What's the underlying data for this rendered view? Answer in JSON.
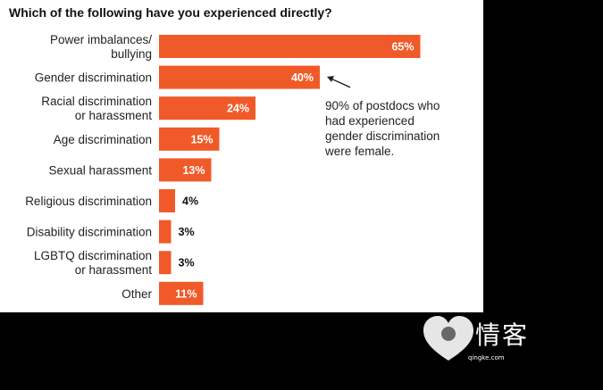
{
  "chart_data": {
    "type": "bar",
    "orientation": "horizontal",
    "title": "Which of the following have you experienced directly?",
    "categories": [
      [
        "Power imbalances/",
        "bullying"
      ],
      [
        "Gender discrimination"
      ],
      [
        "Racial discrimination",
        "or harassment"
      ],
      [
        "Age discrimination"
      ],
      [
        "Sexual harassment"
      ],
      [
        "Religious discrimination"
      ],
      [
        "Disability discrimination"
      ],
      [
        "LGBTQ discrimination",
        "or harassment"
      ],
      [
        "Other"
      ]
    ],
    "values": [
      65,
      40,
      24,
      15,
      13,
      4,
      3,
      3,
      11
    ],
    "value_labels": [
      "65%",
      "40%",
      "24%",
      "15%",
      "13%",
      "4%",
      "3%",
      "3%",
      "11%"
    ],
    "xlim": [
      0,
      100
    ],
    "bar_color": "#f05a28",
    "annotation": {
      "text": "90% of postdocs who\nhad experienced\ngender discrimination\nwere female.",
      "points_to": "Gender discrimination"
    }
  },
  "watermark": {
    "text": "情客",
    "subtext": "qingke.com"
  }
}
